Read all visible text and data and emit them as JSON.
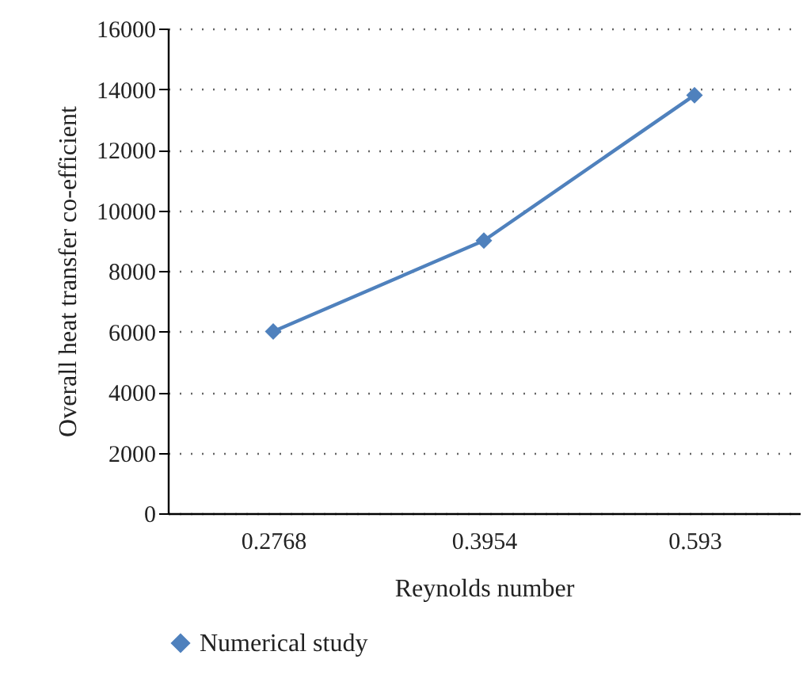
{
  "chart_data": {
    "type": "line",
    "xlabel": "Reynolds number",
    "ylabel": "Overall heat transfer co-efficient",
    "categories": [
      "0.2768",
      "0.3954",
      "0.593"
    ],
    "series": [
      {
        "name": "Numerical study",
        "color": "#4f81bd",
        "values": [
          6000,
          9000,
          13800
        ]
      }
    ],
    "ylim": [
      0,
      16000
    ],
    "yticks": [
      0,
      2000,
      4000,
      6000,
      8000,
      10000,
      12000,
      14000,
      16000
    ],
    "grid": "y",
    "legend": "bottom left",
    "marker": "diamond",
    "line_style": "solid"
  }
}
